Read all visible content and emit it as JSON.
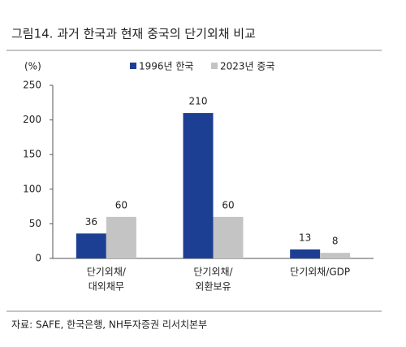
{
  "chart_data": {
    "type": "bar",
    "title": "그림14. 과거 한국과 현재 중국의 단기외채 비교",
    "y_unit": "(%)",
    "categories": [
      [
        "단기외채/",
        "대외채무"
      ],
      [
        "단기외채/",
        "외환보유"
      ],
      [
        "단기외채/GDP"
      ]
    ],
    "series": [
      {
        "name": "1996년 한국",
        "color": "#1d3f93",
        "values": [
          36,
          210,
          13
        ]
      },
      {
        "name": "2023년 중국",
        "color": "#c4c4c4",
        "values": [
          60,
          60,
          8
        ]
      }
    ],
    "ylim": [
      0,
      250
    ],
    "yticks": [
      0,
      50,
      100,
      150,
      200,
      250
    ],
    "source": "자료: SAFE, 한국은행, NH투자증권 리서치본부"
  }
}
